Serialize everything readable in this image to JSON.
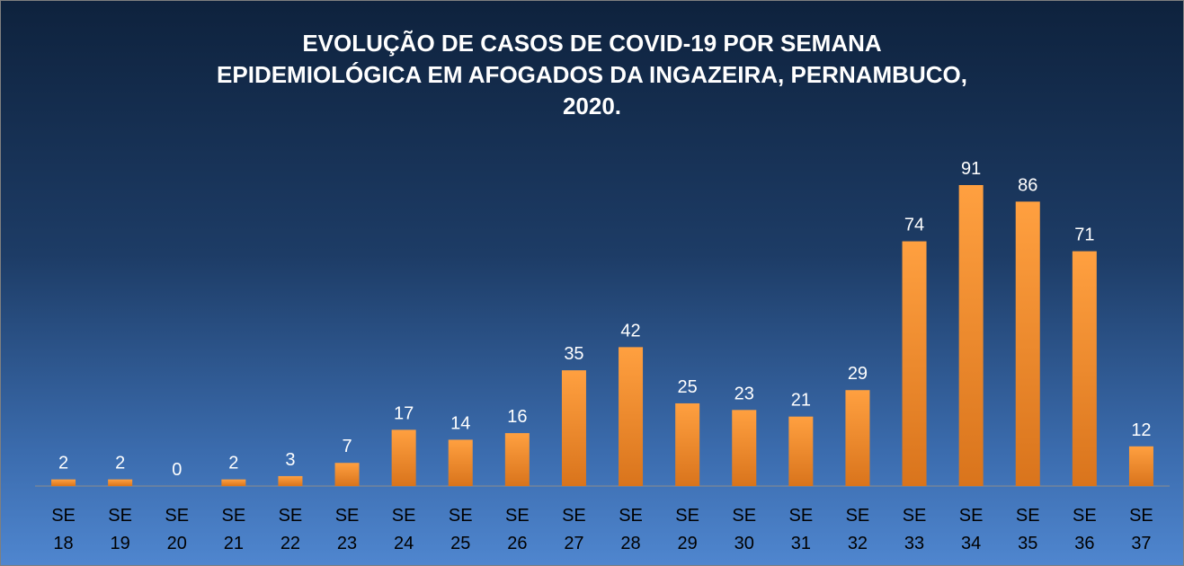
{
  "chart_data": {
    "type": "bar",
    "title": "EVOLUÇÃO DE CASOS DE COVID-19 POR SEMANA EPIDEMIOLÓGICA EM AFOGADOS DA INGAZEIRA, PERNAMBUCO, 2020.",
    "categories": [
      "SE 18",
      "SE 19",
      "SE 20",
      "SE 21",
      "SE 22",
      "SE 23",
      "SE 24",
      "SE 25",
      "SE 26",
      "SE 27",
      "SE 28",
      "SE 29",
      "SE 30",
      "SE 31",
      "SE 32",
      "SE 33",
      "SE 34",
      "SE 35",
      "SE 36",
      "SE 37"
    ],
    "values": [
      2,
      2,
      0,
      2,
      3,
      7,
      17,
      14,
      16,
      35,
      42,
      25,
      23,
      21,
      29,
      74,
      91,
      86,
      71,
      12
    ],
    "color": "#f28e2c"
  }
}
